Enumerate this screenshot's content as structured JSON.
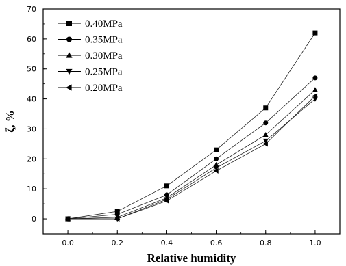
{
  "chart_data": {
    "type": "line",
    "title": "",
    "xlabel": "Relative humidity",
    "ylabel": "ζ, %",
    "xlim": [
      -0.1,
      1.1
    ],
    "ylim": [
      -5,
      70
    ],
    "xticks": [
      0.0,
      0.2,
      0.4,
      0.6,
      0.8,
      1.0
    ],
    "xtick_labels": [
      "0.0",
      "0.2",
      "0.4",
      "0.6",
      "0.8",
      "1.0"
    ],
    "yticks": [
      0,
      10,
      20,
      30,
      40,
      50,
      60,
      70
    ],
    "ytick_labels": [
      "0",
      "10",
      "20",
      "30",
      "40",
      "50",
      "60",
      "70"
    ],
    "grid": false,
    "legend_position": "top-left",
    "x": [
      0.0,
      0.2,
      0.4,
      0.6,
      0.8,
      1.0
    ],
    "series": [
      {
        "name": "0.40MPa",
        "marker": "square",
        "values": [
          0,
          2.5,
          11,
          23,
          37,
          62
        ]
      },
      {
        "name": "0.35MPa",
        "marker": "circle",
        "values": [
          0,
          1.5,
          8,
          20,
          32,
          47
        ]
      },
      {
        "name": "0.30MPa",
        "marker": "triangle-up",
        "values": [
          0,
          0.5,
          7,
          18,
          28,
          43
        ]
      },
      {
        "name": "0.25MPa",
        "marker": "triangle-down",
        "values": [
          0,
          0,
          6.5,
          17,
          26,
          40
        ]
      },
      {
        "name": "0.20MPa",
        "marker": "triangle-left",
        "values": [
          0,
          0,
          6,
          16,
          25,
          41
        ]
      }
    ]
  }
}
